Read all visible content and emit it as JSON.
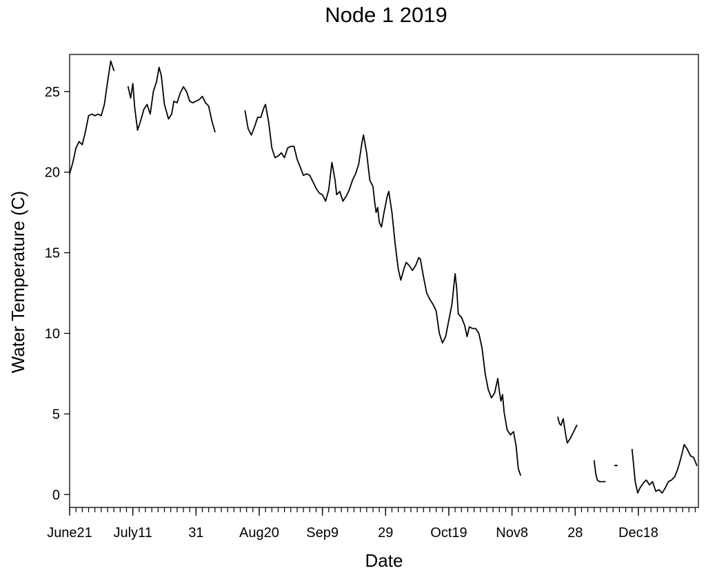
{
  "chart_data": {
    "type": "line",
    "title": "Node 1 2019",
    "xlabel": "Date",
    "ylabel": "Water Temperature (C)",
    "xlim": [
      0,
      199
    ],
    "ylim": [
      -0.8,
      27.3
    ],
    "x_unit": "days since June 21, 2019",
    "grid": false,
    "legend": "none",
    "y_ticks": [
      0,
      5,
      10,
      15,
      20,
      25
    ],
    "x_ticks": [
      {
        "day": 0,
        "label": "June21"
      },
      {
        "day": 20,
        "label": "July11"
      },
      {
        "day": 40,
        "label": "31"
      },
      {
        "day": 60,
        "label": "Aug20"
      },
      {
        "day": 80,
        "label": "Sep9"
      },
      {
        "day": 100,
        "label": "29"
      },
      {
        "day": 120,
        "label": "Oct19"
      },
      {
        "day": 140,
        "label": "Nov8"
      },
      {
        "day": 160,
        "label": "28"
      },
      {
        "day": 180,
        "label": "Dec18"
      }
    ],
    "series": [
      {
        "name": "Water Temperature",
        "segments": [
          [
            [
              0,
              19.9
            ],
            [
              1,
              20.6
            ],
            [
              2,
              21.5
            ],
            [
              3,
              21.9
            ],
            [
              4,
              21.7
            ],
            [
              5,
              22.5
            ],
            [
              6,
              23.5
            ],
            [
              7,
              23.6
            ],
            [
              8,
              23.5
            ],
            [
              9,
              23.6
            ],
            [
              10,
              23.5
            ],
            [
              11,
              24.2
            ],
            [
              12,
              25.6
            ],
            [
              13,
              26.9
            ],
            [
              14,
              26.3
            ]
          ],
          [
            [
              18.5,
              25.3
            ],
            [
              19.3,
              24.6
            ],
            [
              20,
              25.5
            ],
            [
              20.6,
              24.0
            ],
            [
              21.5,
              22.6
            ],
            [
              22.5,
              23.2
            ],
            [
              23.5,
              23.9
            ],
            [
              24.5,
              24.2
            ],
            [
              25.5,
              23.6
            ],
            [
              26.5,
              25.0
            ],
            [
              27.5,
              25.6
            ],
            [
              28.3,
              26.5
            ],
            [
              29,
              26.0
            ],
            [
              30,
              24.2
            ],
            [
              31.3,
              23.3
            ],
            [
              32.3,
              23.6
            ],
            [
              33,
              24.4
            ],
            [
              34,
              24.3
            ],
            [
              35,
              24.9
            ],
            [
              36,
              25.3
            ],
            [
              37,
              25.0
            ],
            [
              38,
              24.4
            ],
            [
              39,
              24.3
            ],
            [
              40,
              24.4
            ],
            [
              41,
              24.5
            ],
            [
              42,
              24.7
            ],
            [
              43,
              24.3
            ],
            [
              44,
              24.1
            ],
            [
              45,
              23.2
            ],
            [
              46,
              22.5
            ]
          ]
        ],
        "segments_b": [
          [
            [
              55.5,
              23.8
            ],
            [
              56.5,
              22.7
            ],
            [
              57.5,
              22.3
            ],
            [
              58.5,
              22.8
            ],
            [
              59.5,
              23.4
            ],
            [
              60.5,
              23.4
            ],
            [
              61.5,
              24.0
            ],
            [
              62,
              24.2
            ],
            [
              63,
              23.1
            ],
            [
              64,
              21.5
            ],
            [
              65,
              20.9
            ],
            [
              66,
              21.0
            ],
            [
              67,
              21.2
            ],
            [
              68,
              20.9
            ],
            [
              69,
              21.5
            ],
            [
              70,
              21.6
            ],
            [
              71,
              21.6
            ],
            [
              72,
              20.8
            ],
            [
              73,
              20.3
            ],
            [
              74,
              19.8
            ],
            [
              75,
              19.9
            ],
            [
              76,
              19.8
            ],
            [
              77,
              19.4
            ],
            [
              78,
              19.0
            ],
            [
              79,
              18.7
            ],
            [
              80,
              18.6
            ],
            [
              81,
              18.2
            ],
            [
              82,
              18.9
            ],
            [
              83,
              20.6
            ],
            [
              84,
              19.5
            ],
            [
              84.5,
              18.6
            ],
            [
              85.5,
              18.8
            ],
            [
              86.5,
              18.2
            ],
            [
              87.5,
              18.5
            ],
            [
              88.5,
              18.9
            ],
            [
              89.5,
              19.5
            ],
            [
              90.5,
              19.9
            ],
            [
              91.5,
              20.5
            ],
            [
              92.5,
              21.8
            ],
            [
              93,
              22.3
            ],
            [
              94,
              21.2
            ],
            [
              95,
              19.5
            ],
            [
              96,
              19.1
            ],
            [
              96.5,
              18.2
            ],
            [
              97,
              17.5
            ],
            [
              97.5,
              17.8
            ],
            [
              98,
              16.9
            ],
            [
              98.7,
              16.6
            ],
            [
              99.5,
              17.5
            ],
            [
              100.5,
              18.5
            ],
            [
              101,
              18.8
            ],
            [
              102,
              17.5
            ],
            [
              103,
              15.6
            ],
            [
              104,
              14.0
            ],
            [
              104.8,
              13.3
            ],
            [
              105.8,
              14.0
            ],
            [
              106.5,
              14.4
            ],
            [
              107.5,
              14.2
            ],
            [
              108.5,
              13.9
            ],
            [
              109.5,
              14.2
            ],
            [
              110.5,
              14.7
            ],
            [
              111,
              14.6
            ],
            [
              112,
              13.5
            ],
            [
              113,
              12.5
            ],
            [
              114,
              12.1
            ],
            [
              115,
              11.8
            ],
            [
              116,
              11.4
            ],
            [
              117,
              10.0
            ],
            [
              118,
              9.4
            ],
            [
              119,
              9.8
            ],
            [
              120,
              10.8
            ],
            [
              121,
              11.8
            ],
            [
              122,
              13.7
            ],
            [
              122.5,
              12.8
            ],
            [
              123,
              11.2
            ],
            [
              124,
              11.0
            ],
            [
              125,
              10.5
            ],
            [
              125.8,
              9.8
            ],
            [
              126.5,
              10.4
            ],
            [
              127.5,
              10.3
            ],
            [
              128.5,
              10.3
            ],
            [
              129.5,
              10.0
            ],
            [
              130.5,
              9.1
            ],
            [
              131.5,
              7.5
            ],
            [
              132.5,
              6.5
            ],
            [
              133.5,
              6.0
            ],
            [
              134.5,
              6.3
            ],
            [
              135.5,
              7.2
            ],
            [
              136,
              6.4
            ],
            [
              136.5,
              5.8
            ],
            [
              137,
              6.2
            ],
            [
              137.5,
              5.1
            ],
            [
              138.5,
              4.0
            ],
            [
              139.5,
              3.7
            ],
            [
              140.5,
              3.9
            ],
            [
              141.3,
              3.0
            ],
            [
              142,
              1.6
            ],
            [
              142.7,
              1.2
            ]
          ],
          [
            [
              154.5,
              4.8
            ],
            [
              155,
              4.4
            ],
            [
              155.5,
              4.3
            ],
            [
              156.2,
              4.7
            ],
            [
              157,
              3.7
            ],
            [
              157.5,
              3.2
            ],
            [
              158.5,
              3.5
            ],
            [
              159.5,
              3.9
            ],
            [
              160.5,
              4.3
            ]
          ],
          [
            [
              166,
              2.1
            ],
            [
              166.5,
              1.3
            ],
            [
              167,
              0.9
            ],
            [
              167.7,
              0.8
            ],
            [
              168.5,
              0.8
            ],
            [
              169.5,
              0.8
            ]
          ],
          [
            [
              172.5,
              1.8
            ],
            [
              173.3,
              1.8
            ]
          ],
          [
            [
              178,
              2.8
            ],
            [
              178.5,
              1.8
            ],
            [
              179,
              0.8
            ],
            [
              179.8,
              0.1
            ],
            [
              180.5,
              0.4
            ],
            [
              181.5,
              0.7
            ],
            [
              182.5,
              0.9
            ],
            [
              183.5,
              0.6
            ],
            [
              184.5,
              0.8
            ],
            [
              185.5,
              0.2
            ],
            [
              186.5,
              0.3
            ],
            [
              187.5,
              0.1
            ],
            [
              188.5,
              0.4
            ],
            [
              189.5,
              0.8
            ],
            [
              190.5,
              0.9
            ],
            [
              191.5,
              1.1
            ],
            [
              192.5,
              1.6
            ],
            [
              193.5,
              2.3
            ],
            [
              194.5,
              3.1
            ],
            [
              195.5,
              2.8
            ],
            [
              196.5,
              2.4
            ],
            [
              197.5,
              2.3
            ],
            [
              198.5,
              1.8
            ]
          ]
        ]
      }
    ]
  }
}
